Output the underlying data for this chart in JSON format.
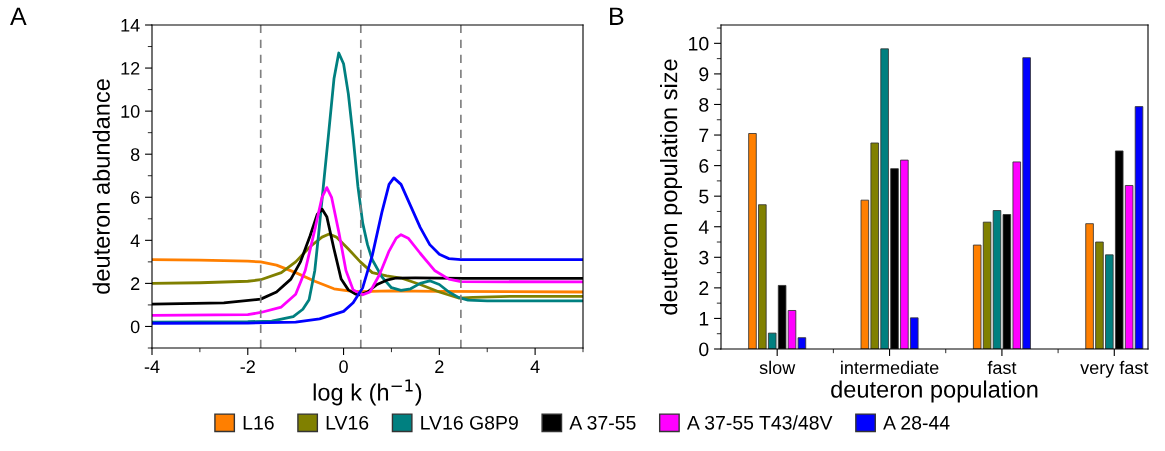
{
  "chart_data": [
    {
      "type": "line",
      "xlabel": "log k (h$^{−1}$)",
      "ylabel": "deuteron abundance",
      "annotations": [
        "A"
      ],
      "legend": "bottom",
      "xlim": [
        -4,
        5
      ],
      "xticks": [
        -4,
        -2,
        0,
        2,
        4
      ],
      "ylim": [
        -1,
        14
      ],
      "yticks": [
        0,
        2,
        4,
        6,
        8,
        10,
        12,
        14
      ],
      "ref_lines": [
        {
          "axis": "x",
          "value": -1.73,
          "color": "#808080",
          "line_style": "dashed"
        },
        {
          "axis": "x",
          "value": 0.36,
          "color": "#808080",
          "line_style": "dashed"
        },
        {
          "axis": "x",
          "value": 2.45,
          "color": "#808080",
          "line_style": "dashed"
        }
      ],
      "series": [
        {
          "name": "L16",
          "color": "#ff7f00",
          "x": [
            -4,
            -3,
            -2,
            -1.73,
            -1.4,
            -1.0,
            -0.6,
            -0.2,
            0.1,
            0.35,
            1,
            2,
            5
          ],
          "values": [
            3.1,
            3.08,
            3.03,
            3.0,
            2.85,
            2.5,
            2.1,
            1.75,
            1.65,
            1.62,
            1.65,
            1.63,
            1.6
          ]
        },
        {
          "name": "LV16",
          "color": "#808000",
          "x": [
            -4,
            -3,
            -2,
            -1.73,
            -1.3,
            -1.0,
            -0.7,
            -0.45,
            -0.3,
            -0.15,
            0.1,
            0.35,
            0.6,
            0.9,
            1.2,
            1.6,
            2.0,
            2.4,
            2.7,
            3.5,
            5
          ],
          "values": [
            2.0,
            2.03,
            2.1,
            2.17,
            2.5,
            3.0,
            3.7,
            4.15,
            4.29,
            4.15,
            3.6,
            3.0,
            2.5,
            2.35,
            2.25,
            1.95,
            1.6,
            1.32,
            1.35,
            1.4,
            1.4
          ]
        },
        {
          "name": "LV16 G8P9",
          "color": "#008080",
          "x": [
            -4,
            -2,
            -1.5,
            -1.05,
            -0.85,
            -0.72,
            -0.6,
            -0.52,
            -0.4,
            -0.31,
            -0.2,
            -0.1,
            0.0,
            0.1,
            0.2,
            0.3,
            0.4,
            0.5,
            0.6,
            0.8,
            1.0,
            1.2,
            1.4,
            1.6,
            1.8,
            2.0,
            2.2,
            2.4,
            2.6,
            3,
            5
          ],
          "values": [
            0.2,
            0.22,
            0.25,
            0.46,
            0.8,
            1.24,
            2.6,
            4.3,
            7.0,
            9.0,
            11.5,
            12.7,
            12.2,
            10.8,
            8.8,
            6.5,
            4.8,
            3.8,
            3.1,
            2.3,
            1.8,
            1.68,
            1.75,
            2.0,
            2.12,
            1.95,
            1.6,
            1.35,
            1.22,
            1.19,
            1.19
          ]
        },
        {
          "name": "A 37-55",
          "color": "#000000",
          "x": [
            -4,
            -2.5,
            -1.73,
            -1.4,
            -1.1,
            -0.9,
            -0.7,
            -0.55,
            -0.45,
            -0.35,
            -0.2,
            -0.05,
            0.1,
            0.25,
            0.35,
            0.5,
            0.7,
            0.9,
            1.1,
            1.5,
            2.0,
            2.5,
            5
          ],
          "values": [
            1.04,
            1.1,
            1.27,
            1.6,
            2.2,
            3.0,
            4.2,
            5.2,
            5.45,
            5.1,
            3.6,
            2.2,
            1.7,
            1.5,
            1.47,
            1.6,
            1.95,
            2.15,
            2.25,
            2.26,
            2.25,
            2.23,
            2.23
          ]
        },
        {
          "name": "A 37-55 T43/48V",
          "color": "#ff00ff",
          "x": [
            -4,
            -2,
            -1.73,
            -1.3,
            -1.0,
            -0.8,
            -0.6,
            -0.45,
            -0.35,
            -0.25,
            -0.1,
            0.05,
            0.2,
            0.4,
            0.55,
            0.75,
            0.95,
            1.1,
            1.2,
            1.35,
            1.6,
            1.9,
            2.2,
            2.45,
            5
          ],
          "values": [
            0.51,
            0.55,
            0.65,
            0.9,
            1.5,
            2.6,
            4.5,
            6.0,
            6.45,
            6.0,
            4.4,
            2.6,
            1.7,
            1.47,
            1.6,
            2.4,
            3.5,
            4.1,
            4.26,
            4.1,
            3.4,
            2.6,
            2.2,
            2.08,
            2.07
          ]
        },
        {
          "name": "A 28-44",
          "color": "#0000ff",
          "x": [
            -4,
            -2,
            -1,
            -0.5,
            0,
            0.2,
            0.4,
            0.6,
            0.8,
            0.95,
            1.05,
            1.2,
            1.4,
            1.6,
            1.8,
            2.0,
            2.2,
            2.45,
            5
          ],
          "values": [
            0.15,
            0.16,
            0.2,
            0.35,
            0.7,
            1.1,
            1.8,
            3.3,
            5.3,
            6.6,
            6.9,
            6.6,
            5.6,
            4.6,
            3.8,
            3.35,
            3.15,
            3.1,
            3.1
          ]
        }
      ]
    },
    {
      "type": "bar",
      "xlabel": "deuteron population",
      "ylabel": "deuteron population size",
      "annotations": [
        "B"
      ],
      "legend": "bottom",
      "categories": [
        "slow",
        "intermediate",
        "fast",
        "very fast"
      ],
      "ylim": [
        0,
        10.6
      ],
      "yticks": [
        0,
        1,
        2,
        3,
        4,
        5,
        6,
        7,
        8,
        9,
        10
      ],
      "series": [
        {
          "name": "L16",
          "color": "#ff7f00",
          "values": [
            7.05,
            4.87,
            3.4,
            4.1
          ]
        },
        {
          "name": "LV16",
          "color": "#808000",
          "values": [
            4.72,
            6.74,
            4.15,
            3.5
          ]
        },
        {
          "name": "LV16 G8P9",
          "color": "#008080",
          "values": [
            0.52,
            9.82,
            4.53,
            3.08
          ]
        },
        {
          "name": "A 37-55",
          "color": "#000000",
          "values": [
            2.08,
            5.9,
            4.4,
            6.48
          ]
        },
        {
          "name": "A 37-55 T43/48V",
          "color": "#ff00ff",
          "values": [
            1.26,
            6.18,
            6.12,
            5.35
          ]
        },
        {
          "name": "A 28-44",
          "color": "#0000ff",
          "values": [
            0.37,
            1.02,
            9.53,
            7.93
          ]
        }
      ]
    }
  ]
}
